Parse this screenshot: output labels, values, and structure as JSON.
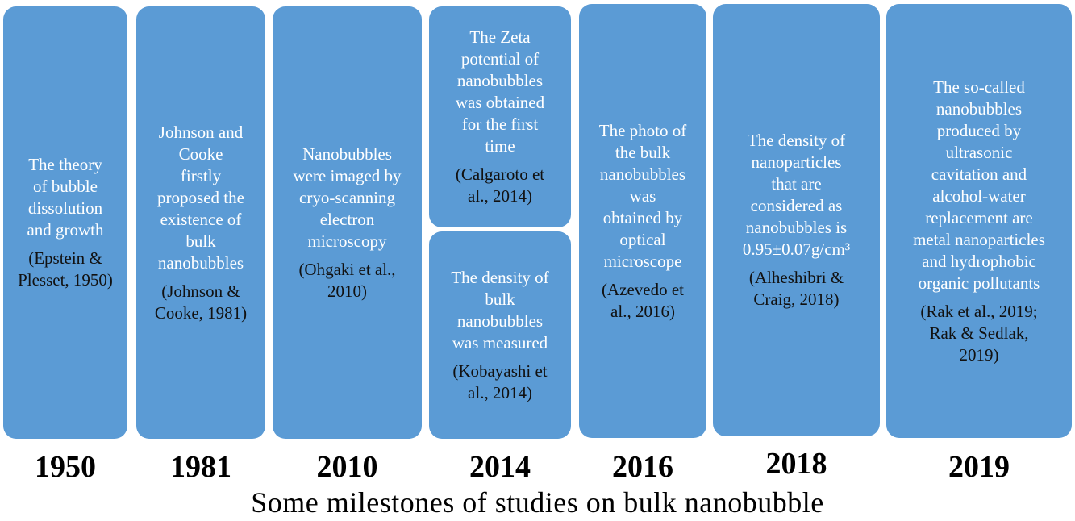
{
  "milestones": [
    {
      "year": "1950",
      "cards": [
        {
          "desc": "The theory\nof bubble\ndissolution\nand growth",
          "ref": "(Epstein &\nPlesset, 1950)"
        }
      ]
    },
    {
      "year": "1981",
      "cards": [
        {
          "desc": "Johnson and\nCooke\nfirstly\nproposed the\nexistence of\nbulk\nnanobubbles",
          "ref": "(Johnson &\nCooke, 1981)"
        }
      ]
    },
    {
      "year": "2010",
      "cards": [
        {
          "desc": "Nanobubbles\nwere imaged by\ncryo-scanning\nelectron\nmicroscopy",
          "ref": "(Ohgaki et al.,\n2010)"
        }
      ]
    },
    {
      "year": "2014",
      "cards": [
        {
          "desc": "The Zeta\npotential of\nnanobubbles\nwas obtained\nfor the first\ntime",
          "ref": "(Calgaroto et\nal., 2014)"
        },
        {
          "desc": "The density of\nbulk\nnanobubbles\nwas measured",
          "ref": "(Kobayashi et\nal., 2014)"
        }
      ]
    },
    {
      "year": "2016",
      "cards": [
        {
          "desc": "The photo of\nthe bulk\nnanobubbles\nwas\nobtained by\noptical\nmicroscope",
          "ref": "(Azevedo et\nal., 2016)"
        }
      ]
    },
    {
      "year": "2018",
      "cards": [
        {
          "desc": "The density of\nnanoparticles\nthat are\nconsidered as\nnanobubbles is\n0.95±0.07g/cm³",
          "ref": "(Alheshibri &\nCraig, 2018)"
        }
      ]
    },
    {
      "year": "2019",
      "cards": [
        {
          "desc": "The so-called\nnanobubbles\nproduced by\nultrasonic\ncavitation and\nalcohol-water\nreplacement are\nmetal nanoparticles\nand hydrophobic\norganic pollutants",
          "ref": "(Rak et al., 2019;\nRak & Sedlak,\n2019)"
        }
      ]
    }
  ],
  "caption": "Some milestones of studies on bulk nanobubble",
  "colors": {
    "card_fill": "#5b9bd5",
    "card_text": "#ffffff",
    "ref_text": "#111111"
  }
}
